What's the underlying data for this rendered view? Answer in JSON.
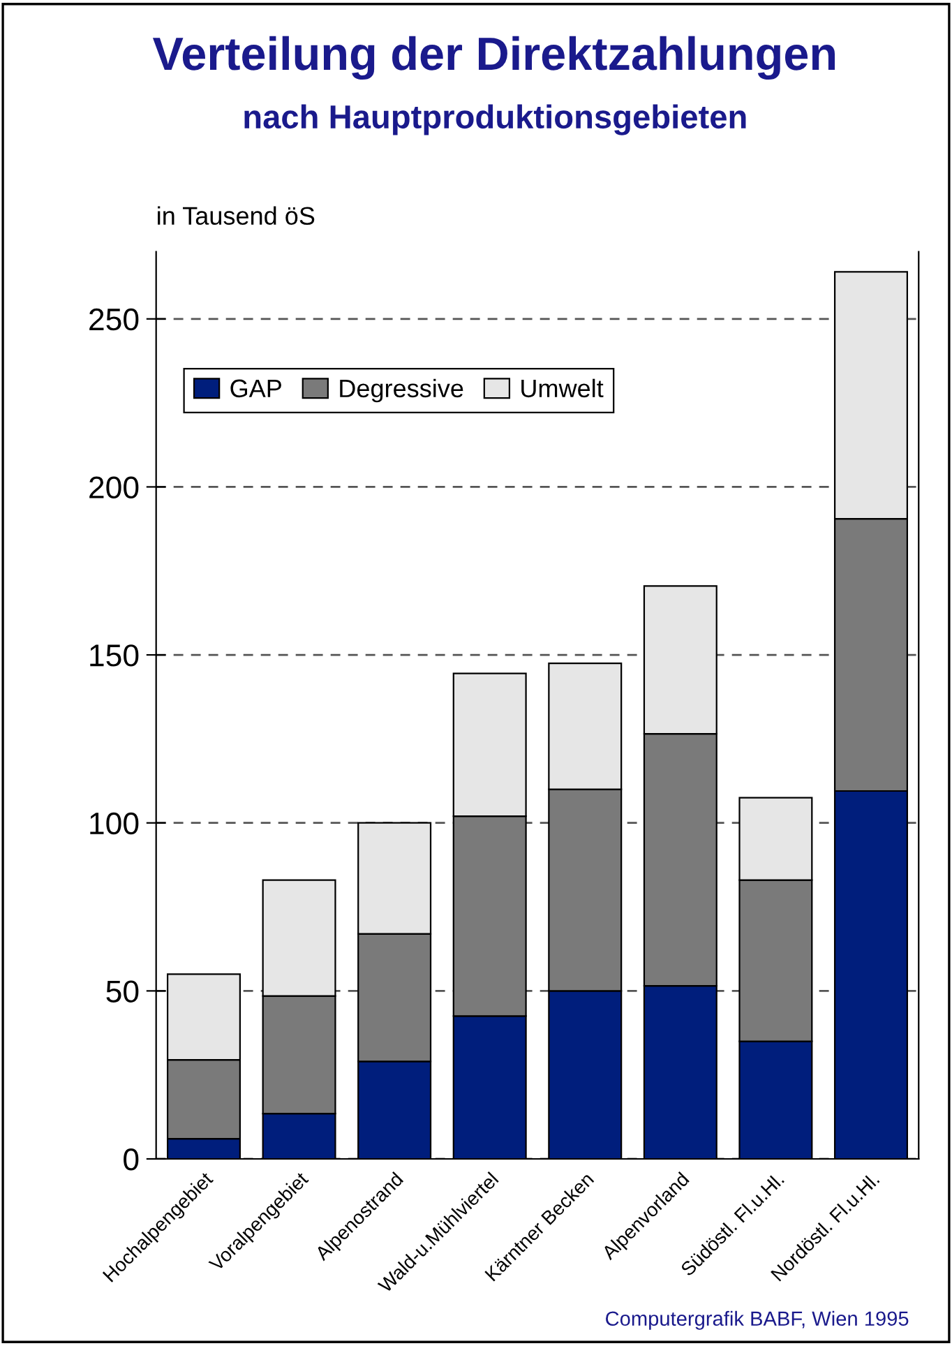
{
  "chart_data": {
    "type": "bar",
    "title": "Verteilung der Direktzahlungen",
    "subtitle": "nach Hauptproduktionsgebieten",
    "ylabel": "in Tausend öS",
    "categories": [
      "Hochalpengebiet",
      "Voralpengebiet",
      "Alpenostrand",
      "Wald-u.Mühlviertel",
      "Kärntner Becken",
      "Alpenvorland",
      "Südöstl. Fl.u.Hl.",
      "Nordöstl. Fl.u.Hl."
    ],
    "stacked": true,
    "series": [
      {
        "name": "GAP",
        "color": "#001e7c",
        "values": [
          6,
          13.5,
          29,
          42.5,
          50,
          51.5,
          35,
          109.5
        ]
      },
      {
        "name": "Degressive",
        "color": "#7a7a7a",
        "values": [
          23.5,
          35,
          38,
          59.5,
          60,
          75,
          48,
          81
        ]
      },
      {
        "name": "Umwelt",
        "color": "#e6e6e6",
        "values": [
          25.5,
          34.5,
          33,
          42.5,
          37.5,
          44,
          24.5,
          73.5
        ]
      }
    ],
    "ylim": [
      0,
      270
    ],
    "yticks": [
      0,
      50,
      100,
      150,
      200,
      250
    ],
    "grid": "y",
    "legend": "top left",
    "annotations": [
      "Computergrafik BABF, Wien 1995"
    ]
  }
}
